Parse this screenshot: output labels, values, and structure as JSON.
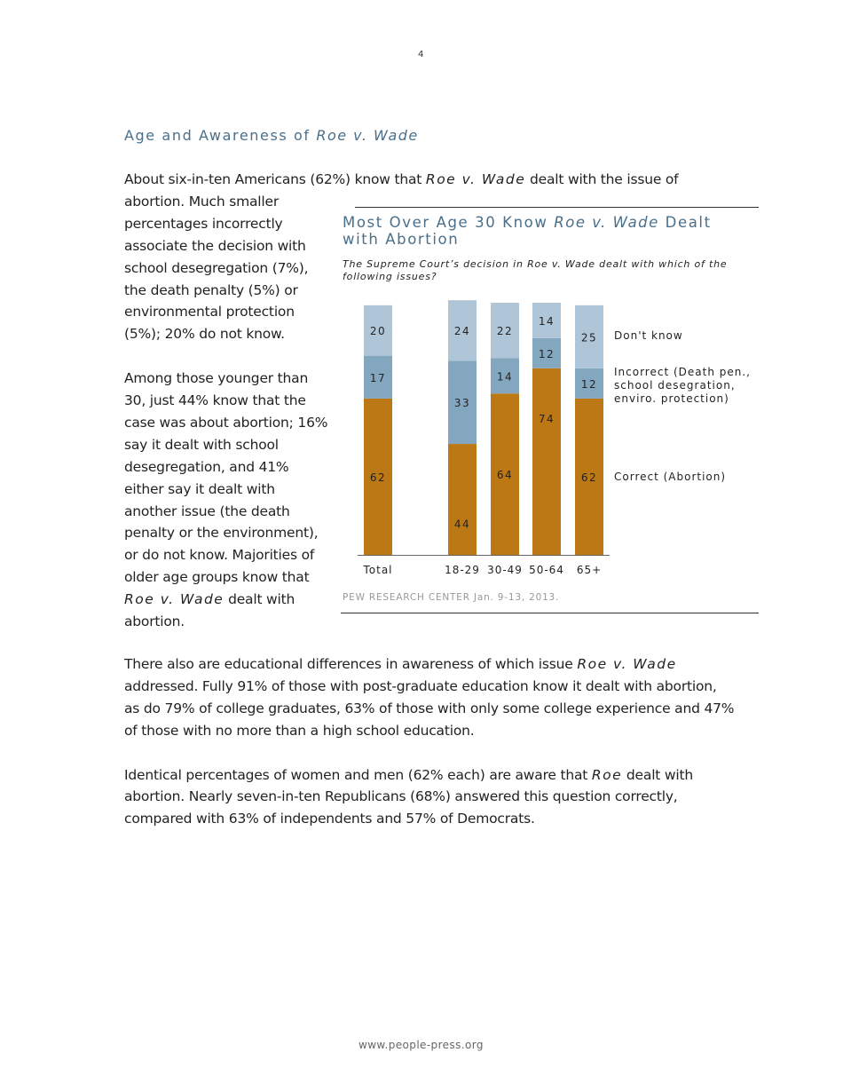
{
  "page_number": "4",
  "section_title": [
    {
      "t": "Age and Awareness of "
    },
    {
      "t": "Roe v. Wade",
      "i": true
    }
  ],
  "body_lines_top": [
    [
      {
        "t": "About six-in-ten Americans (62%) know that "
      },
      {
        "t": "Roe v. Wade",
        "i": true
      },
      {
        "t": " dealt with the issue of"
      }
    ],
    [
      {
        "t": "abortion. Much smaller"
      }
    ],
    [
      {
        "t": "percentages incorrectly"
      }
    ],
    [
      {
        "t": "associate the decision with"
      }
    ],
    [
      {
        "t": "school desegregation (7%),"
      }
    ],
    [
      {
        "t": "the death penalty (5%) or"
      }
    ],
    [
      {
        "t": "environmental protection"
      }
    ],
    [
      {
        "t": "(5%); 20% do not know."
      }
    ],
    [],
    [
      {
        "t": "Among those younger than"
      }
    ],
    [
      {
        "t": "30, just 44% know that the"
      }
    ],
    [
      {
        "t": "case was about abortion; 16%"
      }
    ],
    [
      {
        "t": "say it dealt with school"
      }
    ],
    [
      {
        "t": "desegregation, and 41%"
      }
    ],
    [
      {
        "t": "either say it dealt with"
      }
    ],
    [
      {
        "t": "another issue (the death"
      }
    ],
    [
      {
        "t": "penalty or the environment),"
      }
    ],
    [
      {
        "t": "or do not know. Majorities of"
      }
    ],
    [
      {
        "t": "older age groups know that"
      }
    ],
    [
      {
        "t": "Roe v. Wade",
        "i": true
      },
      {
        "t": " dealt with"
      }
    ],
    [
      {
        "t": "abortion."
      }
    ]
  ],
  "body_lines_bottom": [
    [
      {
        "t": "There also are educational differences in awareness of which issue "
      },
      {
        "t": "Roe v. Wade",
        "i": true
      }
    ],
    [
      {
        "t": "addressed. Fully 91% of those with post-graduate education know it dealt with abortion,"
      }
    ],
    [
      {
        "t": "as do 79% of college graduates, 63% of those with only some college experience and 47%"
      }
    ],
    [
      {
        "t": "of those with no more than a high school education."
      }
    ],
    [],
    [
      {
        "t": "Identical percentages of women and men (62% each) are aware that "
      },
      {
        "t": "Roe",
        "i": true
      },
      {
        "t": " dealt with"
      }
    ],
    [
      {
        "t": "abortion. Nearly seven-in-ten Republicans (68%) answered this question correctly,"
      }
    ],
    [
      {
        "t": "compared with 63% of independents and 57% of Democrats."
      }
    ]
  ],
  "chart_title": [
    {
      "t": "Most Over Age 30 Know "
    },
    {
      "t": "Roe v. Wade",
      "i": true
    },
    {
      "t": " Dealt"
    }
  ],
  "chart_title_line2": "with Abortion",
  "chart_subtitle_1": "The Supreme Court’s decision in Roe v. Wade dealt with which of the",
  "chart_subtitle_2": "following issues?",
  "chart_source": "PEW RESEARCH CENTER Jan. 9-13, 2013.",
  "footer": "www.people-press.org",
  "chart_data": {
    "type": "bar",
    "stacked": true,
    "categories": [
      "Total",
      "18-29",
      "30-49",
      "50-64",
      "65+"
    ],
    "series": [
      {
        "name": "Correct (Abortion)",
        "values": [
          62,
          44,
          64,
          74,
          62
        ],
        "color": "#bd7816"
      },
      {
        "name": "Incorrect (Death pen., school desegration, enviro. protection)",
        "label_lines": [
          "Incorrect (Death pen.,",
          "school desegration,",
          "enviro. protection)"
        ],
        "values": [
          17,
          33,
          14,
          12,
          12
        ],
        "color": "#84a7c0"
      },
      {
        "name": "Don't know",
        "values": [
          20,
          24,
          22,
          14,
          25
        ],
        "color": "#afc5d8"
      }
    ],
    "ylim": [
      0,
      100
    ],
    "grid": false,
    "legend": "right"
  }
}
